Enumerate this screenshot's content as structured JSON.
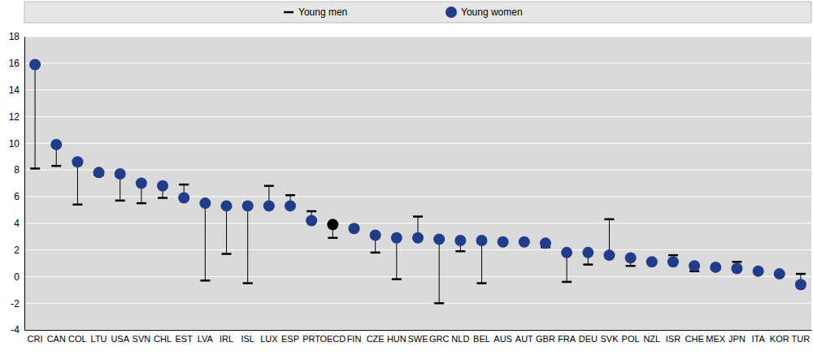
{
  "chart_data": {
    "type": "range_dot",
    "categories": [
      "CRI",
      "CAN",
      "COL",
      "LTU",
      "USA",
      "SVN",
      "CHL",
      "EST",
      "LVA",
      "IRL",
      "ISL",
      "LUX",
      "ESP",
      "PRT",
      "OECD",
      "FIN",
      "CZE",
      "HUN",
      "SWE",
      "GRC",
      "NLD",
      "BEL",
      "AUS",
      "AUT",
      "GBR",
      "FRA",
      "DEU",
      "SVK",
      "POL",
      "NZL",
      "ISR",
      "CHE",
      "MEX",
      "JPN",
      "ITA",
      "KOR",
      "TUR"
    ],
    "series": [
      {
        "name": "Young men",
        "color": "#000000",
        "marker": "dash",
        "values": [
          8.1,
          8.3,
          5.4,
          7.6,
          5.7,
          5.5,
          5.9,
          6.9,
          -0.3,
          1.7,
          -0.5,
          6.8,
          6.1,
          4.9,
          2.9,
          3.6,
          1.8,
          -0.2,
          4.5,
          -2.0,
          1.9,
          -0.5,
          2.6,
          2.6,
          2.2,
          -0.4,
          0.9,
          4.3,
          0.8,
          1.1,
          1.6,
          0.4,
          0.7,
          1.1,
          0.3,
          0.2,
          0.2
        ]
      },
      {
        "name": "Young women",
        "color": "#1f3d8c",
        "marker": "circle",
        "colors": [
          "#1f3d8c",
          "#1f3d8c",
          "#1f3d8c",
          "#1f3d8c",
          "#1f3d8c",
          "#1f3d8c",
          "#1f3d8c",
          "#1f3d8c",
          "#1f3d8c",
          "#1f3d8c",
          "#1f3d8c",
          "#1f3d8c",
          "#1f3d8c",
          "#1f3d8c",
          "#000000",
          "#1f3d8c",
          "#1f3d8c",
          "#1f3d8c",
          "#1f3d8c",
          "#1f3d8c",
          "#1f3d8c",
          "#1f3d8c",
          "#1f3d8c",
          "#1f3d8c",
          "#1f3d8c",
          "#1f3d8c",
          "#1f3d8c",
          "#1f3d8c",
          "#1f3d8c",
          "#1f3d8c",
          "#1f3d8c",
          "#1f3d8c",
          "#1f3d8c",
          "#1f3d8c",
          "#1f3d8c",
          "#1f3d8c",
          "#1f3d8c"
        ],
        "values": [
          15.9,
          9.9,
          8.6,
          7.8,
          7.7,
          7.0,
          6.8,
          5.9,
          5.5,
          5.3,
          5.3,
          5.3,
          5.3,
          4.2,
          3.9,
          3.6,
          3.1,
          2.9,
          2.9,
          2.8,
          2.7,
          2.7,
          2.6,
          2.6,
          2.5,
          1.8,
          1.8,
          1.6,
          1.4,
          1.1,
          1.1,
          0.8,
          0.7,
          0.6,
          0.4,
          0.2,
          -0.6
        ]
      }
    ],
    "ylim": [
      -4,
      18
    ],
    "yticks": [
      -4,
      -2,
      0,
      2,
      4,
      6,
      8,
      10,
      12,
      14,
      16,
      18
    ],
    "grid": true,
    "legend": "top"
  }
}
